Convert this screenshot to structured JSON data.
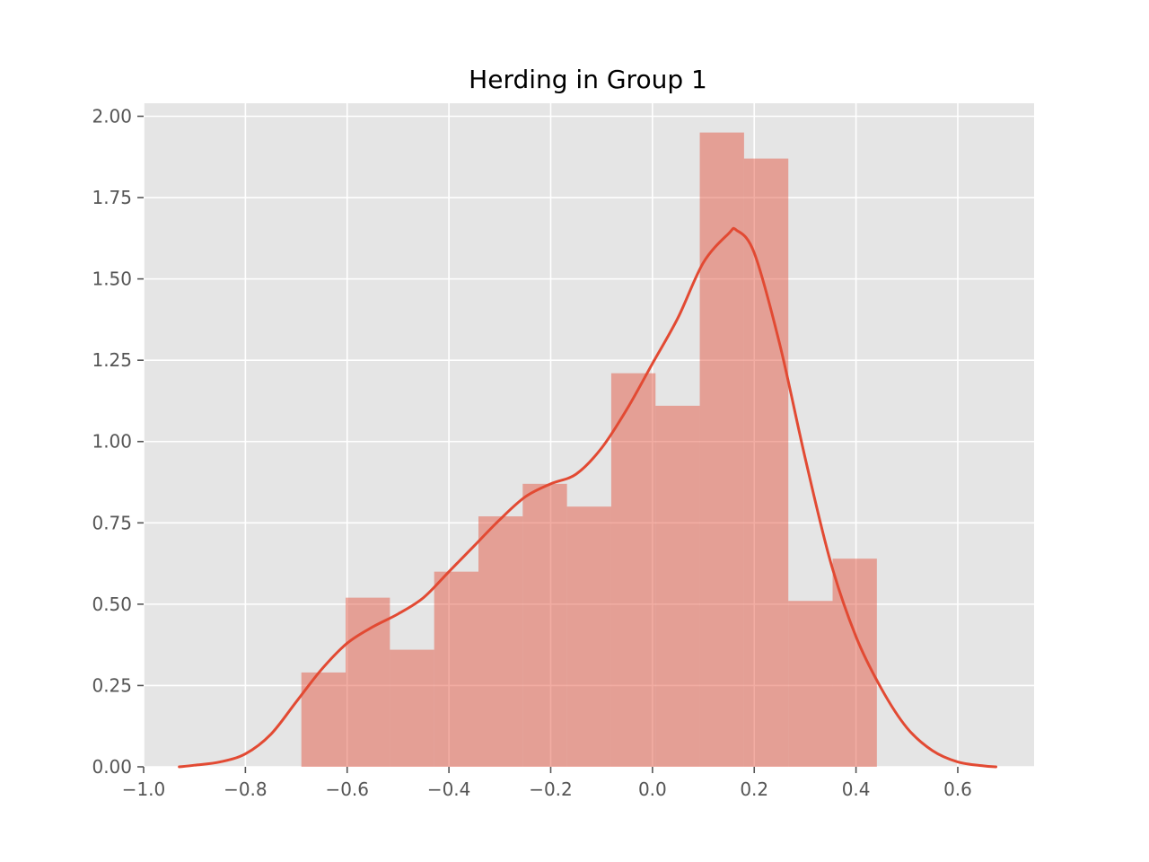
{
  "chart_data": {
    "type": "bar",
    "title": "Herding in Group 1",
    "xlabel": "",
    "ylabel": "",
    "xlim": [
      -1.0,
      0.75
    ],
    "ylim": [
      0.0,
      2.04
    ],
    "xticks": [
      -1.0,
      -0.8,
      -0.6,
      -0.4,
      -0.2,
      0.0,
      0.2,
      0.4,
      0.6
    ],
    "xtick_labels": [
      "−1.0",
      "−0.8",
      "−0.6",
      "−0.4",
      "−0.2",
      "0.0",
      "0.2",
      "0.4",
      "0.6"
    ],
    "yticks": [
      0.0,
      0.25,
      0.5,
      0.75,
      1.0,
      1.25,
      1.5,
      1.75,
      2.0
    ],
    "ytick_labels": [
      "0.00",
      "0.25",
      "0.50",
      "0.75",
      "1.00",
      "1.25",
      "1.50",
      "1.75",
      "2.00"
    ],
    "grid": true,
    "histogram": {
      "bin_edges": [
        -0.69,
        -0.603,
        -0.516,
        -0.429,
        -0.342,
        -0.255,
        -0.168,
        -0.081,
        0.006,
        0.093,
        0.18,
        0.267,
        0.354,
        0.441
      ],
      "density": [
        0.29,
        0.52,
        0.36,
        0.6,
        0.77,
        0.87,
        0.8,
        1.21,
        1.11,
        1.95,
        1.87,
        0.51,
        0.64
      ],
      "color": "#e24a33",
      "opacity": 0.45
    },
    "kde": {
      "color": "#e24a33",
      "x": [
        -0.93,
        -0.9,
        -0.85,
        -0.8,
        -0.75,
        -0.7,
        -0.65,
        -0.6,
        -0.55,
        -0.5,
        -0.45,
        -0.4,
        -0.35,
        -0.3,
        -0.25,
        -0.2,
        -0.15,
        -0.1,
        -0.05,
        0.0,
        0.05,
        0.1,
        0.15,
        0.165,
        0.2,
        0.25,
        0.3,
        0.35,
        0.4,
        0.45,
        0.5,
        0.55,
        0.6,
        0.65,
        0.675
      ],
      "y": [
        0.0,
        0.005,
        0.015,
        0.04,
        0.1,
        0.2,
        0.3,
        0.38,
        0.43,
        0.47,
        0.52,
        0.6,
        0.68,
        0.76,
        0.83,
        0.87,
        0.9,
        0.98,
        1.1,
        1.24,
        1.38,
        1.55,
        1.64,
        1.65,
        1.58,
        1.3,
        0.95,
        0.63,
        0.4,
        0.24,
        0.12,
        0.05,
        0.015,
        0.003,
        0.0
      ]
    }
  }
}
